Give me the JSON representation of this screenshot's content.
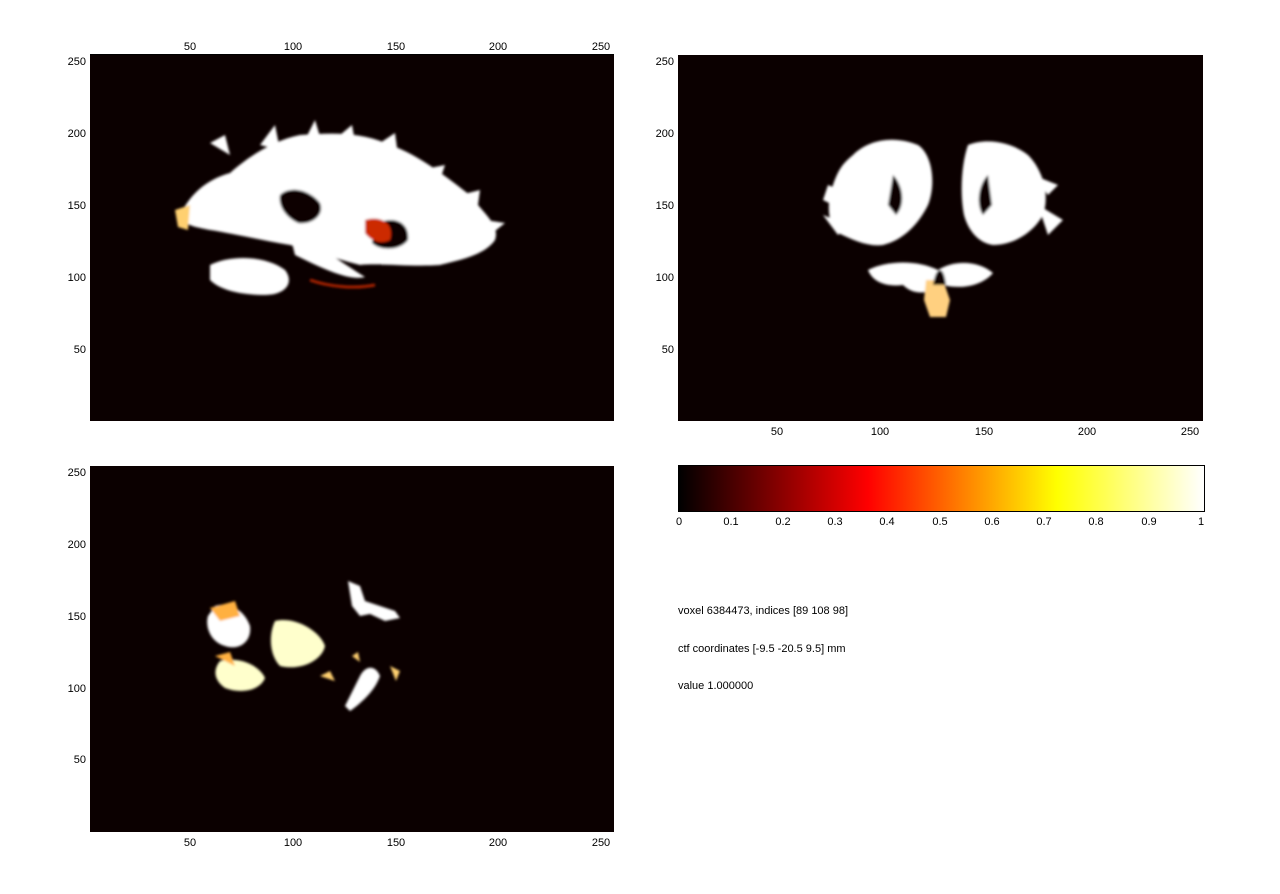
{
  "panels": {
    "sagittal": {
      "x_ticks": [
        "50",
        "100",
        "150",
        "200",
        "250"
      ],
      "y_ticks": [
        "250",
        "200",
        "150",
        "100",
        "50"
      ],
      "x_axis_position": "top"
    },
    "coronal": {
      "x_ticks": [
        "50",
        "100",
        "150",
        "200",
        "250"
      ],
      "y_ticks": [
        "250",
        "200",
        "150",
        "100",
        "50"
      ],
      "x_axis_position": "bottom"
    },
    "axial": {
      "x_ticks": [
        "50",
        "100",
        "150",
        "200",
        "250"
      ],
      "y_ticks": [
        "250",
        "200",
        "150",
        "100",
        "50"
      ],
      "x_axis_position": "bottom"
    }
  },
  "colorbar": {
    "colormap": "hot",
    "ticks": [
      "0",
      "0.1",
      "0.2",
      "0.3",
      "0.4",
      "0.5",
      "0.6",
      "0.7",
      "0.8",
      "0.9",
      "1"
    ],
    "colors": [
      "#000000",
      "#550000",
      "#aa0000",
      "#ff0000",
      "#ff5500",
      "#ffaa00",
      "#ffff00",
      "#ffff80",
      "#ffffff"
    ]
  },
  "info": {
    "voxel_line": "voxel 6384473, indices [89 108 98]",
    "coords_line": "ctf coordinates [-9.5 -20.5 9.5] mm",
    "value_line": "value 1.000000"
  },
  "colors": {
    "background": "#0b0000",
    "white_matter": "#ffffff",
    "highlight": "#ffe080",
    "edge": "#cc3300"
  }
}
